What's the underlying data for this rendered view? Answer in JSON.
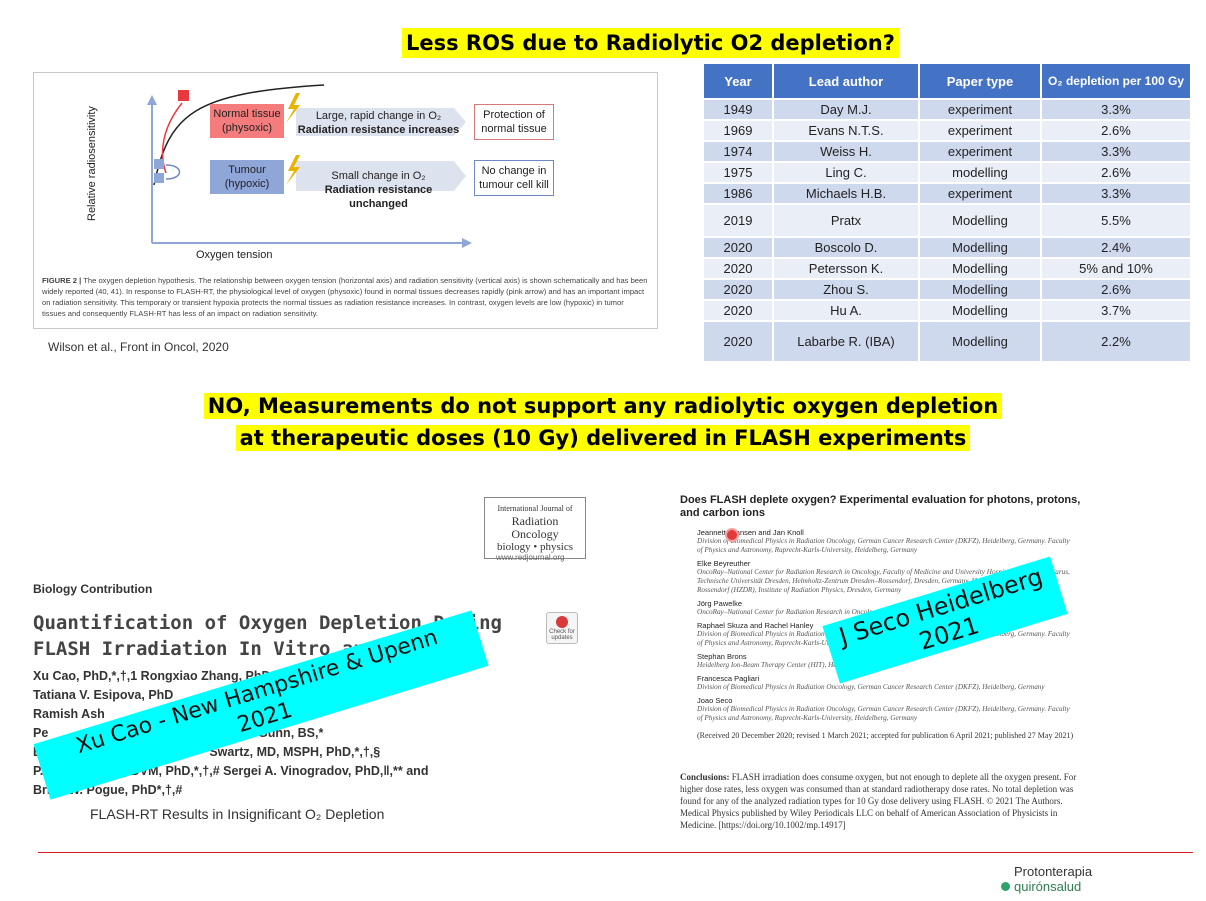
{
  "slide_title": "Less ROS due to Radiolytic O2 depletion?",
  "conclusion_line1": "NO, Measurements do not support any radiolytic oxygen depletion",
  "conclusion_line2": "at therapeutic doses (10 Gy) delivered in FLASH experiments",
  "figure": {
    "y_axis": "Relative radiosensitivity",
    "x_axis": "Oxygen tension",
    "normal_box": "Normal tissue (physoxic)",
    "normal_change": "Large, rapid change in O₂",
    "normal_change_bold": "Radiation resistance increases",
    "normal_result": "Protection of normal tissue",
    "tumour_box": "Tumour (hypoxic)",
    "tumour_change": "Small change in O₂",
    "tumour_change_bold": "Radiation resistance unchanged",
    "tumour_result": "No change in tumour cell kill",
    "caption_label": "FIGURE 2 |",
    "caption": "The oxygen depletion hypothesis. The relationship between oxygen tension (horizontal axis) and radiation sensitivity (vertical axis) is shown schematically and has been widely reported (40, 41). In response to FLASH-RT, the physiological level of oxygen (physoxic) found in normal tissues decreases rapidly (pink arrow) and has an important impact on radiation sensitivity. This temporary or transient hypoxia protects the normal tissues as radiation resistance increases. In contrast, oxygen levels are low (hypoxic) in tumor tissues and consequently FLASH-RT has less of an impact on radiation sensitivity.",
    "citation": "Wilson et al., Front in Oncol, 2020",
    "colors": {
      "normal": "#f47c7c",
      "tumour": "#8fa6d8",
      "arrow": "#dde3ee",
      "curve_marker": "#e8393f"
    }
  },
  "table": {
    "headers": [
      "Year",
      "Lead author",
      "Paper type",
      "O₂ depletion per 100 Gy"
    ],
    "rows": [
      [
        "1949",
        "Day M.J.",
        "experiment",
        "3.3%"
      ],
      [
        "1969",
        "Evans N.T.S.",
        "experiment",
        "2.6%"
      ],
      [
        "1974",
        "Weiss H.",
        "experiment",
        "3.3%"
      ],
      [
        "1975",
        "Ling C.",
        "modelling",
        "2.6%"
      ],
      [
        "1986",
        "Michaels H.B.",
        "experiment",
        "3.3%"
      ],
      [
        "2019",
        "Pratx",
        "Modelling",
        "5.5%"
      ],
      [
        "2020",
        "Boscolo D.",
        "Modelling",
        "2.4%"
      ],
      [
        "2020",
        "Petersson K.",
        "Modelling",
        "5% and 10%"
      ],
      [
        "2020",
        "Zhou S.",
        "Modelling",
        "2.6%"
      ],
      [
        "2020",
        "Hu A.",
        "Modelling",
        "3.7%"
      ],
      [
        "2020",
        "Labarbe R. (IBA)",
        "Modelling",
        "2.2%"
      ]
    ]
  },
  "paper1": {
    "journal_l1": "International Journal of",
    "journal_l2": "Radiation Oncology",
    "journal_l3": "biology • physics",
    "journal_url": "www.redjournal.org",
    "contribution": "Biology Contribution",
    "title": "Quantification of Oxygen Depletion During FLASH Irradiation In Vitro and In Vivo",
    "authors": [
      "Xu Cao, PhD,*,†,1 Rongxiao Zhang, PhD",
      "Tatiana V. Esipova, PhD",
      "Ramish Ash",
      "Pe                                    BS,* Jason R. Gunn, BS,*",
      "Be     Williams, PhD,*,†,§         Swartz, MD, MSPH, PhD,*,†,§",
      "P. Jack Hoopes, DVM, PhD,*,†,# Sergei A. Vinogradov, PhD,‖,** and",
      "Brian W. Pogue, PhD*,†,#"
    ],
    "subtitle": "FLASH-RT Results in Insignificant O₂ Depletion",
    "badge": "Check for updates"
  },
  "paper2": {
    "title": "Does FLASH deplete oxygen? Experimental evaluation for photons, protons, and carbon ions",
    "authors": [
      {
        "name": "Jeannette Jansen and Jan Knoll",
        "aff": "Division of Biomedical Physics in Radiation Oncology, German Cancer Research Center (DKFZ), Heidelberg, Germany. Faculty of Physics and Astronomy, Ruprecht-Karls-University, Heidelberg, Germany"
      },
      {
        "name": "Elke Beyreuther",
        "aff": "OncoRay–National Center for Radiation Research in Oncology, Faculty of Medicine and University Hospital Carl Gustav Carus, Technische Universität Dresden, Helmholtz-Zentrum Dresden–Rossendorf, Dresden, Germany. Helmholtz-Zentrum Dresden–Rossendorf (HZDR), Institute of Radiation Physics, Dresden, Germany"
      },
      {
        "name": "Jörg Pawelke",
        "aff": "OncoRay–National Center for Radiation Research in Oncology. Helmholtz-Zentrum Dresden–Rossendorf"
      },
      {
        "name": "Raphael Skuza and Rachel Hanley",
        "aff": "Division of Biomedical Physics in Radiation Oncology, German Cancer Research Center (DKFZ), Heidelberg, Germany. Faculty of Physics and Astronomy, Ruprecht-Karls-University, Heidelberg, Germany"
      },
      {
        "name": "Stephan Brons",
        "aff": "Heidelberg Ion-Beam Therapy Center (HIT), Heidelberg, Germany"
      },
      {
        "name": "Francesca Pagliari",
        "aff": "Division of Biomedical Physics in Radiation Oncology, German Cancer Research Center (DKFZ), Heidelberg, Germany"
      },
      {
        "name": "Joao Seco",
        "aff": "Division of Biomedical Physics in Radiation Oncology, German Cancer Research Center (DKFZ), Heidelberg, Germany. Faculty of Physics and Astronomy, Ruprecht-Karls-University, Heidelberg, Germany"
      }
    ],
    "received": "(Received 20 December 2020; revised 1 March 2021; accepted for publication 6 April 2021; published 27 May 2021)",
    "conclusion_label": "Conclusions:",
    "conclusion": "FLASH irradiation does consume oxygen, but not enough to deplete all the oxygen present. For higher dose rates, less oxygen was consumed than at standard radiotherapy dose rates. No total depletion was found for any of the analyzed radiation types for 10 Gy dose delivery using FLASH. © 2021 The Authors. Medical Physics published by Wiley Periodicals LLC on behalf of American Association of Physicists in Medicine. [https://doi.org/10.1002/mp.14917]"
  },
  "overlay1_l1": "Xu Cao - New Hampshire & Upenn",
  "overlay1_l2": "2021",
  "overlay2_l1": "J Seco Heidelberg",
  "overlay2_l2": "2021",
  "logo_l1": "Protonterapia",
  "logo_l2": "quirónsalud",
  "accent": "#d32020"
}
